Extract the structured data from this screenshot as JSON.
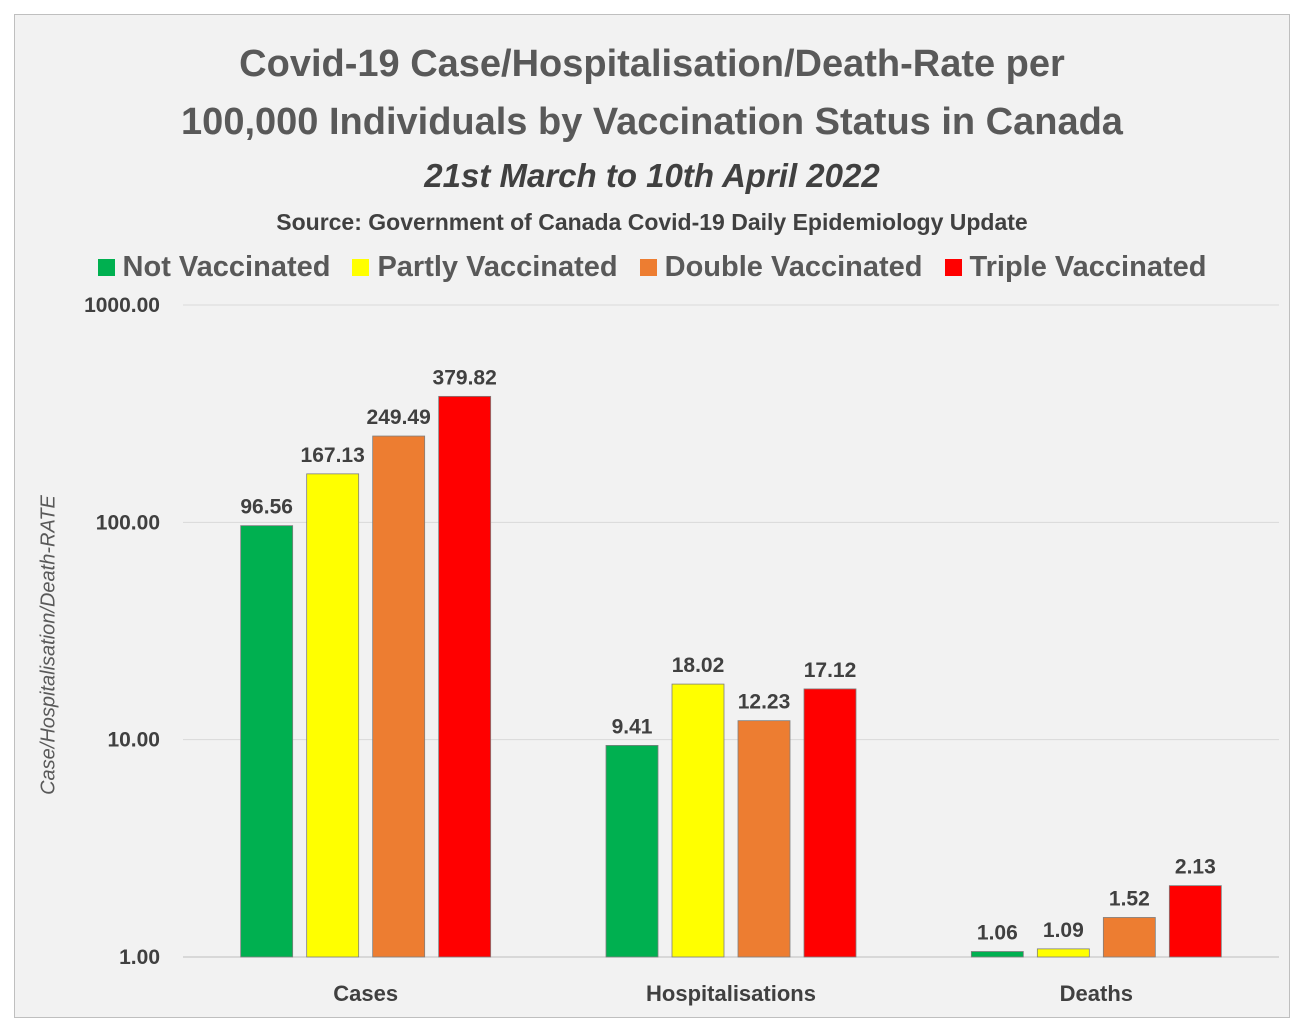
{
  "chart_data": {
    "type": "bar",
    "title": "Covid-19 Case/Hospitalisation/Death-Rate per 100,000 Individuals by Vaccination Status in Canada",
    "title_lines": [
      "Covid-19 Case/Hospitalisation/Death-Rate per",
      "100,000 Individuals by Vaccination Status in Canada"
    ],
    "subtitle": "21st March to 10th April 2022",
    "source": "Source: Government of Canada Covid-19 Daily Epidemiology Update",
    "xlabel": "",
    "ylabel": "Case/Hospitalisation/Death-RATE",
    "yscale": "log",
    "ylim": [
      1,
      1000
    ],
    "yticks": [
      1,
      10,
      100,
      1000
    ],
    "ytick_labels": [
      "1.00",
      "10.00",
      "100.00",
      "1000.00"
    ],
    "grid": true,
    "legend_position": "top",
    "categories": [
      "Cases",
      "Hospitalisations",
      "Deaths"
    ],
    "series": [
      {
        "name": "Not Vaccinated",
        "color": "#00b050",
        "values": [
          96.56,
          9.41,
          1.06
        ],
        "labels": [
          "96.56",
          "9.41",
          "1.06"
        ]
      },
      {
        "name": "Partly Vaccinated",
        "color": "#ffff00",
        "values": [
          167.13,
          18.02,
          1.09
        ],
        "labels": [
          "167.13",
          "18.02",
          "1.09"
        ]
      },
      {
        "name": "Double Vaccinated",
        "color": "#ed7d31",
        "values": [
          249.49,
          12.23,
          1.52
        ],
        "labels": [
          "249.49",
          "12.23",
          "1.52"
        ]
      },
      {
        "name": "Triple Vaccinated",
        "color": "#ff0000",
        "values": [
          379.82,
          17.12,
          2.13
        ],
        "labels": [
          "379.82",
          "17.12",
          "2.13"
        ]
      }
    ]
  }
}
